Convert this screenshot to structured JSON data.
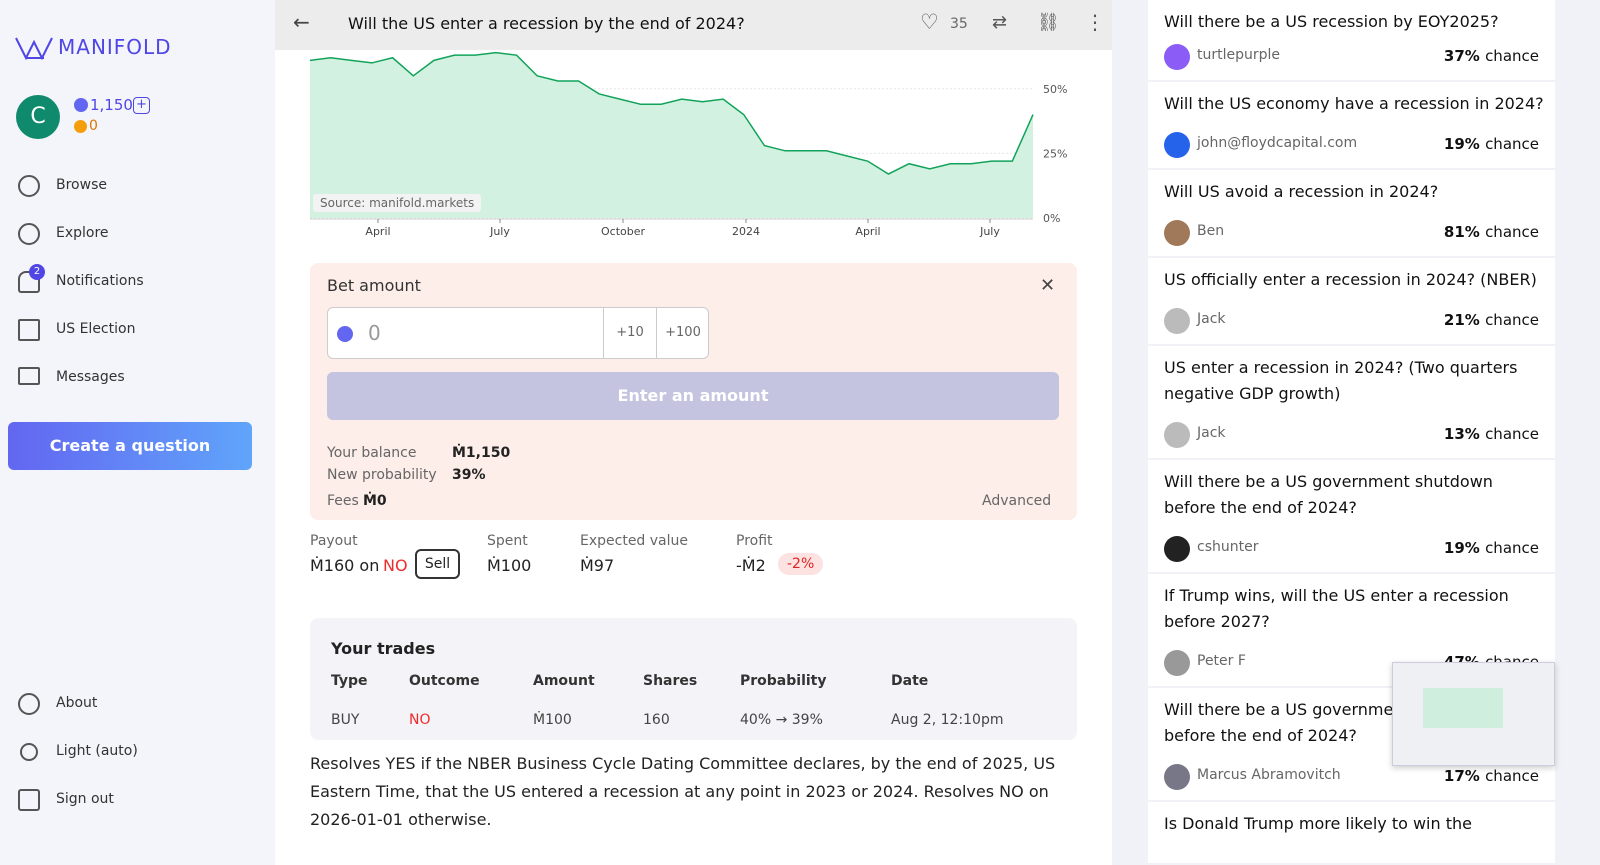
{
  "sidebar": {
    "logo": "MANIFOLD",
    "avatar": "C",
    "balance": "1,150",
    "prize": "0",
    "nav": [
      "Browse",
      "Explore",
      "Notifications",
      "US Election",
      "Messages"
    ],
    "notification_badge": "2",
    "create_button": "Create a question",
    "bottom_nav": [
      "About",
      "Light (auto)",
      "Sign out"
    ]
  },
  "header": {
    "title": "Will the US enter a recession by the end of 2024?",
    "likes": "35"
  },
  "chart": {
    "type": "line",
    "source": "Source: manifold.markets",
    "color": "#12a35a",
    "values": [
      61,
      62,
      61,
      60,
      62,
      55,
      61,
      63,
      63,
      64,
      63,
      55,
      53,
      53,
      48,
      46,
      44,
      44,
      46,
      45,
      46,
      40,
      28,
      26,
      26,
      26,
      24,
      22,
      17,
      21,
      19,
      21,
      21,
      22,
      22,
      40
    ],
    "ylim": [
      0,
      65
    ],
    "yticks": [
      {
        "value": 0,
        "label": "0%"
      },
      {
        "value": 25,
        "label": "25%"
      },
      {
        "value": 50,
        "label": "50%"
      }
    ],
    "xtick_labels": [
      "April",
      "July",
      "October",
      "2024",
      "April",
      "July"
    ]
  },
  "bet": {
    "label": "Bet amount",
    "placeholder": "0",
    "increments": [
      "+10",
      "+100"
    ],
    "submit": "Enter an amount",
    "rows": [
      {
        "label": "Your balance",
        "value": "Ṁ1,150"
      },
      {
        "label": "New probability",
        "value": "39%"
      },
      {
        "label": "Fees",
        "value": "Ṁ0"
      }
    ],
    "advanced": "Advanced"
  },
  "stats": {
    "payout_label": "Payout",
    "payout_value": "Ṁ160 on",
    "payout_outcome": "NO",
    "sell": "Sell",
    "spent_label": "Spent",
    "spent_value": "Ṁ100",
    "ev_label": "Expected value",
    "ev_value": "Ṁ97",
    "profit_label": "Profit",
    "profit_value": "-Ṁ2",
    "profit_pct": "-2%"
  },
  "trades": {
    "title": "Your trades",
    "headers": [
      "Type",
      "Outcome",
      "Amount",
      "Shares",
      "Probability",
      "Date"
    ],
    "rows": [
      [
        "BUY",
        "NO",
        "Ṁ100",
        "160",
        "40% → 39%",
        "Aug 2, 12:10pm"
      ]
    ]
  },
  "description": "Resolves YES if the NBER Business Cycle Dating Committee declares, by the end of 2025, US Eastern Time, that the US entered a recession at any point in 2023 or 2024. Resolves NO on 2026-01-01 otherwise.",
  "related": {
    "chance_word": "chance",
    "items": [
      {
        "question": "Will there be a US recession by EOY2025?",
        "author": "turtlepurple",
        "chance": "37%"
      },
      {
        "question": "Will the US economy have a recession in 2024?",
        "author": "john@floydcapital.com",
        "chance": "19%"
      },
      {
        "question": "Will US avoid a recession in 2024?",
        "author": "Ben",
        "chance": "81%"
      },
      {
        "question": "US officially enter a recession in 2024? (NBER)",
        "author": "Jack",
        "chance": "21%"
      },
      {
        "question": "US enter a recession in 2024? (Two quarters negative GDP growth)",
        "author": "Jack",
        "chance": "13%"
      },
      {
        "question": "Will there be a US government shutdown before the end of 2024?",
        "author": "cshunter",
        "chance": "19%"
      },
      {
        "question": "If Trump wins, will the US enter a recession before 2027?",
        "author": "Peter F",
        "chance": "47%"
      },
      {
        "question": "Will there be a US government shutdown before the end of 2024?",
        "author": "Marcus Abramovitch",
        "chance": "17%"
      },
      {
        "question": "Is Donald Trump more likely to win the",
        "author": "",
        "chance": ""
      }
    ]
  }
}
